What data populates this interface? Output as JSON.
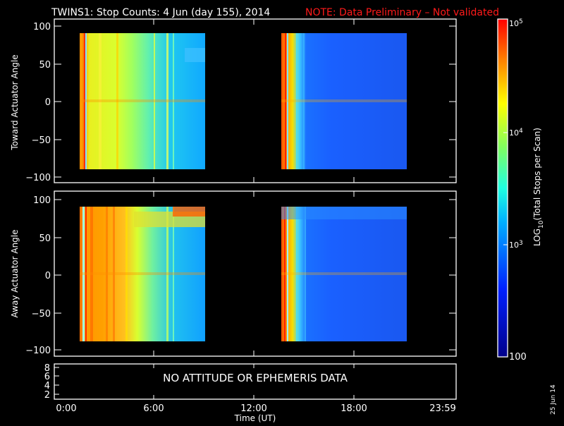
{
  "title": "TWINS1: Stop Counts:  4 Jun (day 155), 2014",
  "note": "NOTE: Data Preliminary – Not validated",
  "date_stamp": "25 Jun 14",
  "chart_data": [
    {
      "type": "heatmap",
      "ylabel": "Toward Actuator Angle",
      "ylim": [
        -110,
        110
      ],
      "yticks": [
        "100",
        "50",
        "0",
        "−50",
        "−100"
      ],
      "segments": [
        {
          "start_hour": 1.2,
          "end_hour": 9.0,
          "level": "high-yellow-to-cyan"
        },
        {
          "start_hour": 13.7,
          "end_hour": 21.2,
          "level": "low-blue"
        }
      ]
    },
    {
      "type": "heatmap",
      "ylabel": "Away Actuator Angle",
      "ylim": [
        -110,
        110
      ],
      "yticks": [
        "100",
        "50",
        "0",
        "−50",
        "−100"
      ],
      "segments": [
        {
          "start_hour": 1.2,
          "end_hour": 9.0,
          "level": "high-orange-to-cyan"
        },
        {
          "start_hour": 13.7,
          "end_hour": 21.2,
          "level": "low-blue"
        }
      ]
    },
    {
      "type": "line",
      "yticks": [
        "8",
        "6",
        "4",
        "2"
      ],
      "message": "NO ATTITUDE OR EPHEMERIS DATA",
      "xlabel": "Time (UT)",
      "xticks": [
        "0:00",
        "6:00",
        "12:00",
        "18:00",
        "23:59"
      ]
    }
  ],
  "colorbar": {
    "label": "LOG10(Total Stops per Scan)",
    "label_base": "LOG",
    "label_sub": "10",
    "label_rest": "(Total Stops per Scan)",
    "ticks": [
      {
        "base": "10",
        "exp": "5"
      },
      {
        "base": "10",
        "exp": "4"
      },
      {
        "base": "10",
        "exp": "3"
      },
      {
        "base": "100",
        "exp": ""
      }
    ],
    "range": [
      100,
      100000
    ],
    "scale": "log"
  }
}
